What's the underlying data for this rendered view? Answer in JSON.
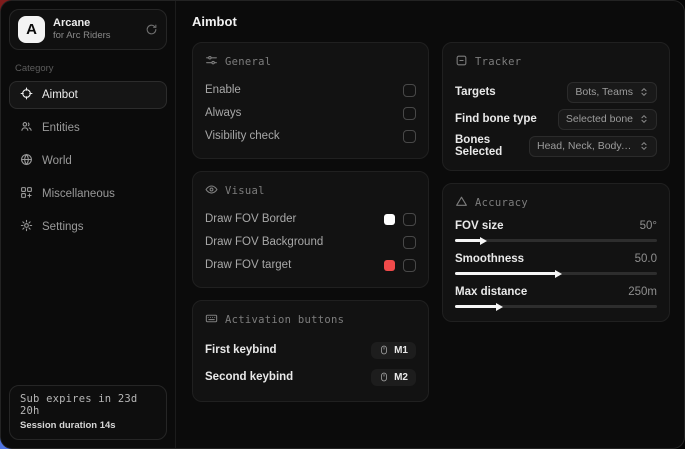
{
  "sidebar": {
    "logo_letter": "A",
    "app_name": "Arcane",
    "app_subtitle": "for Arc Riders",
    "category_label": "Category",
    "items": [
      {
        "label": "Aimbot",
        "selected": true
      },
      {
        "label": "Entities",
        "selected": false
      },
      {
        "label": "World",
        "selected": false
      },
      {
        "label": "Miscellaneous",
        "selected": false
      },
      {
        "label": "Settings",
        "selected": false
      }
    ],
    "footer": {
      "expiry": "Sub expires in 23d 20h",
      "session": "Session duration 14s"
    }
  },
  "main": {
    "title": "Aimbot",
    "general": {
      "title": "General",
      "rows": [
        {
          "label": "Enable",
          "checked": false
        },
        {
          "label": "Always",
          "checked": false
        },
        {
          "label": "Visibility check",
          "checked": false
        }
      ]
    },
    "visual": {
      "title": "Visual",
      "rows": [
        {
          "label": "Draw FOV Border",
          "swatch": "#ffffff",
          "checked": false
        },
        {
          "label": "Draw FOV Background",
          "checked": false
        },
        {
          "label": "Draw FOV target",
          "swatch": "#f04a4a",
          "checked": false
        }
      ]
    },
    "activation": {
      "title": "Activation buttons",
      "rows": [
        {
          "label": "First keybind",
          "key": "M1"
        },
        {
          "label": "Second keybind",
          "key": "M2"
        }
      ]
    },
    "tracker": {
      "title": "Tracker",
      "rows": [
        {
          "label": "Targets",
          "value": "Bots, Teams"
        },
        {
          "label": "Find bone type",
          "value": "Selected bone"
        },
        {
          "label": "Bones Selected",
          "value": "Head, Neck, Body, Fe..."
        }
      ]
    },
    "accuracy": {
      "title": "Accuracy",
      "rows": [
        {
          "label": "FOV size",
          "value": "50°",
          "percent": 13
        },
        {
          "label": "Smoothness",
          "value": "50.0",
          "percent": 50
        },
        {
          "label": "Max distance",
          "value": "250m",
          "percent": 21
        }
      ]
    }
  }
}
